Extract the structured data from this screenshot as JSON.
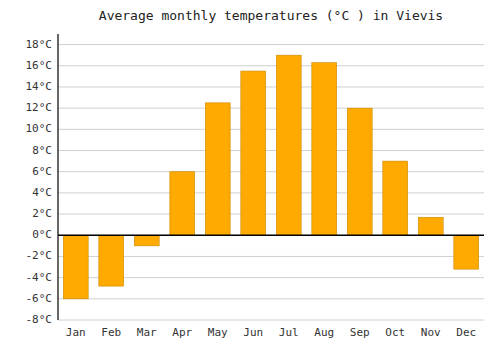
{
  "chart_data": {
    "type": "bar",
    "title": "Average monthly temperatures (°C ) in Vievis",
    "categories": [
      "Jan",
      "Feb",
      "Mar",
      "Apr",
      "May",
      "Jun",
      "Jul",
      "Aug",
      "Sep",
      "Oct",
      "Nov",
      "Dec"
    ],
    "values": [
      -6,
      -4.8,
      -1,
      6,
      12.5,
      15.5,
      17,
      16.3,
      12,
      7,
      1.7,
      -3.2
    ],
    "color": "#FFAA00",
    "ylim": [
      -8,
      19
    ],
    "yticks": [
      {
        "value": -8,
        "label": "-8°C"
      },
      {
        "value": -6,
        "label": "-6°C"
      },
      {
        "value": -4,
        "label": "-4°C"
      },
      {
        "value": -2,
        "label": "-2°C"
      },
      {
        "value": 0,
        "label": "0°C"
      },
      {
        "value": 2,
        "label": "2°C"
      },
      {
        "value": 4,
        "label": "4°C"
      },
      {
        "value": 6,
        "label": "6°C"
      },
      {
        "value": 8,
        "label": "8°C"
      },
      {
        "value": 10,
        "label": "10°C"
      },
      {
        "value": 12,
        "label": "12°C"
      },
      {
        "value": 14,
        "label": "14°C"
      },
      {
        "value": 16,
        "label": "16°C"
      },
      {
        "value": 18,
        "label": "18°C"
      }
    ],
    "grid": true
  }
}
